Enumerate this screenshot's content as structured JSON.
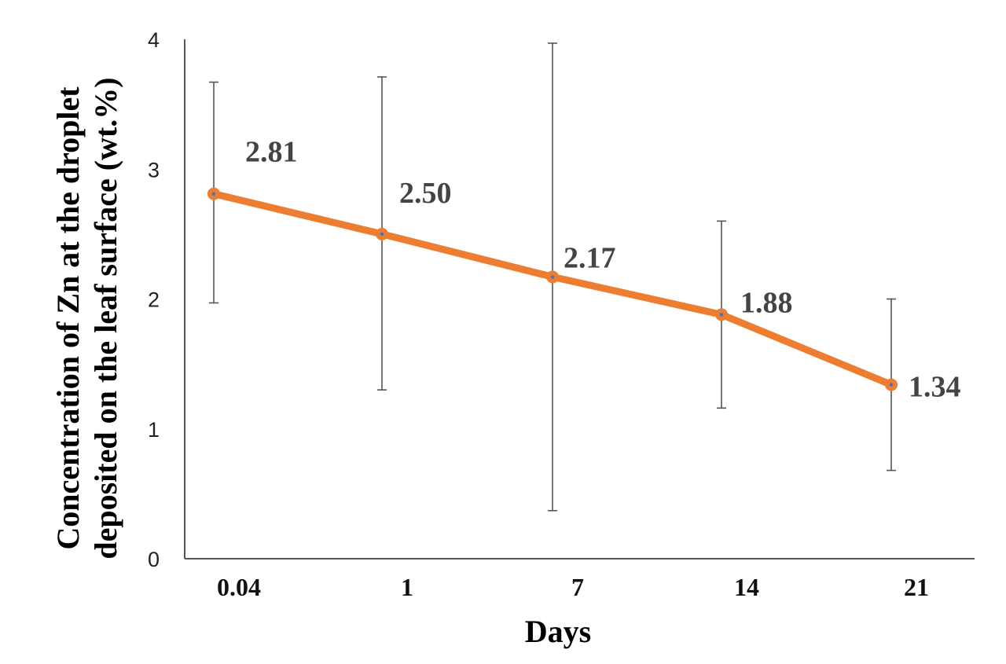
{
  "chart_data": {
    "type": "line",
    "title": "",
    "xlabel": "Days",
    "ylabel_lines": [
      "Concentration of Zn at the droplet",
      "deposited on the leaf surface (wt.%)"
    ],
    "categories": [
      "0.04",
      "1",
      "7",
      "14",
      "21"
    ],
    "series": [
      {
        "values": [
          2.81,
          2.5,
          2.17,
          1.88,
          1.34
        ],
        "error_upper": [
          3.67,
          3.71,
          3.97,
          2.6,
          2.0
        ],
        "error_lower": [
          1.97,
          1.3,
          0.37,
          1.16,
          0.68
        ],
        "data_labels": [
          "2.81",
          "2.50",
          "2.17",
          "1.88",
          "1.34"
        ],
        "color": "#ED7D31"
      }
    ],
    "ylim": [
      0,
      4
    ],
    "yticks": [
      "0",
      "1",
      "2",
      "3",
      "4"
    ],
    "grid": false,
    "legend": "none",
    "colors": {
      "axis": "#555555",
      "error_bar": "#555555",
      "marker_center": "#4472C4"
    }
  }
}
